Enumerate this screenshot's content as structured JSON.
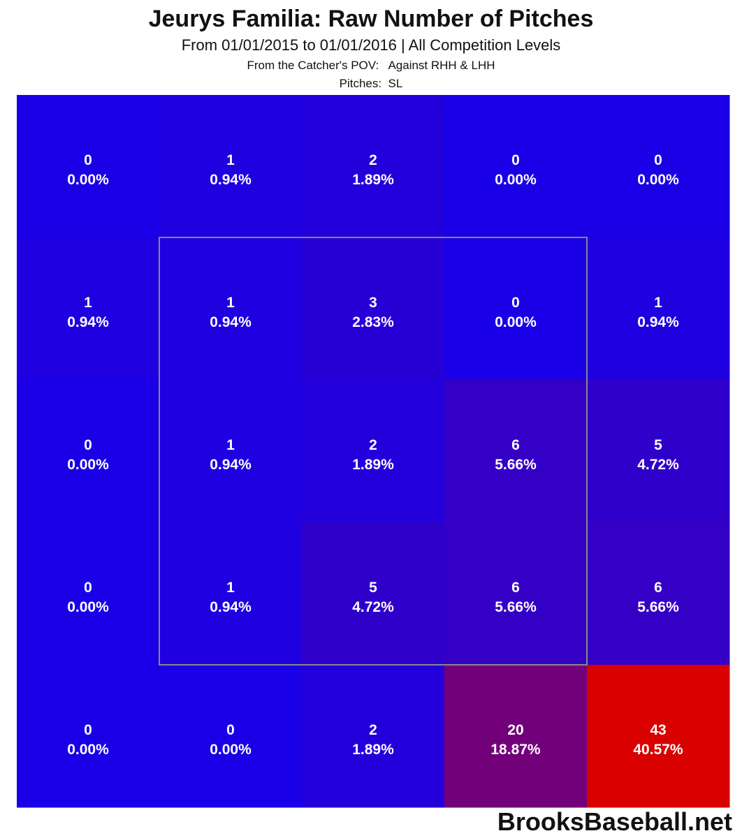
{
  "header": {
    "title": "Jeurys Familia: Raw Number of Pitches",
    "subtitle": "From 01/01/2015 to 01/01/2016 | All Competition Levels",
    "pov_line": "From the Catcher's POV:   Against RHH & LHH",
    "pitches_line": "Pitches:  SL"
  },
  "watermark": "BrooksBaseball.net",
  "chart_data": {
    "type": "heatmap",
    "title": "Jeurys Familia: Raw Number of Pitches",
    "rows": 5,
    "cols": 5,
    "counts": [
      [
        0,
        1,
        2,
        0,
        0
      ],
      [
        1,
        1,
        3,
        0,
        1
      ],
      [
        0,
        1,
        2,
        6,
        5
      ],
      [
        0,
        1,
        5,
        6,
        6
      ],
      [
        0,
        0,
        2,
        20,
        43
      ]
    ],
    "percents": [
      [
        "0.00%",
        "0.94%",
        "1.89%",
        "0.00%",
        "0.00%"
      ],
      [
        "0.94%",
        "0.94%",
        "2.83%",
        "0.00%",
        "0.94%"
      ],
      [
        "0.00%",
        "0.94%",
        "1.89%",
        "5.66%",
        "4.72%"
      ],
      [
        "0.00%",
        "0.94%",
        "4.72%",
        "5.66%",
        "5.66%"
      ],
      [
        "0.00%",
        "0.00%",
        "1.89%",
        "18.87%",
        "40.57%"
      ]
    ],
    "color_scale": {
      "low": "#1a00e6",
      "high": "#d90000"
    },
    "strike_zone": {
      "rows": [
        1,
        3
      ],
      "cols": [
        1,
        3
      ]
    },
    "strike_zone_color": "#888888"
  }
}
